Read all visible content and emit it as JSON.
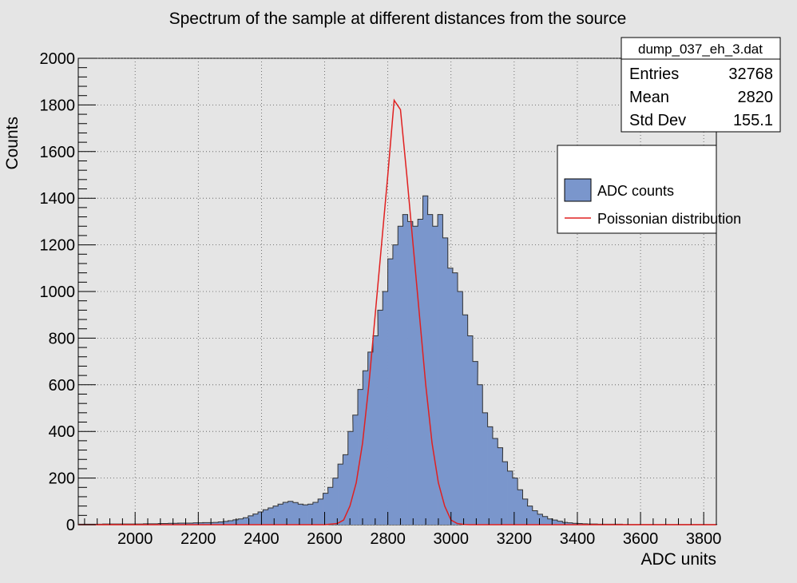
{
  "chart_data": {
    "type": "bar",
    "title": "Spectrum of the sample at different distances from the source",
    "xlabel": "ADC units",
    "ylabel": "Counts",
    "xlim": [
      1820,
      3840
    ],
    "ylim": [
      0,
      2000
    ],
    "grid": true,
    "x_ticks": [
      "2000",
      "2200",
      "2400",
      "2600",
      "2800",
      "3000",
      "3200",
      "3400",
      "3600",
      "3800"
    ],
    "y_ticks": [
      "0",
      "200",
      "400",
      "600",
      "800",
      "1000",
      "1200",
      "1400",
      "1600",
      "1800",
      "2000"
    ],
    "stats_box": {
      "title": "dump_037_eh_3.dat",
      "rows": [
        {
          "label": "Entries",
          "value": "32768"
        },
        {
          "label": "Mean",
          "value": "2820"
        },
        {
          "label": "Std Dev",
          "value": "155.1"
        }
      ]
    },
    "legend": {
      "placement": "upper-right",
      "entries": [
        "ADC counts",
        "Poissonian distribution"
      ]
    },
    "histogram": {
      "name": "ADC counts",
      "color": "#7a96cc",
      "bin_width": 15.8,
      "bins": [
        [
          1820,
          2
        ],
        [
          1836,
          2
        ],
        [
          1852,
          2
        ],
        [
          1868,
          2
        ],
        [
          1884,
          2
        ],
        [
          1899,
          3
        ],
        [
          1915,
          3
        ],
        [
          1931,
          3
        ],
        [
          1947,
          3
        ],
        [
          1963,
          3
        ],
        [
          1978,
          3
        ],
        [
          1994,
          3
        ],
        [
          2010,
          3
        ],
        [
          2026,
          4
        ],
        [
          2042,
          4
        ],
        [
          2057,
          4
        ],
        [
          2073,
          5
        ],
        [
          2089,
          5
        ],
        [
          2105,
          6
        ],
        [
          2121,
          6
        ],
        [
          2136,
          7
        ],
        [
          2152,
          7
        ],
        [
          2168,
          7
        ],
        [
          2184,
          8
        ],
        [
          2200,
          8
        ],
        [
          2215,
          9
        ],
        [
          2231,
          9
        ],
        [
          2247,
          10
        ],
        [
          2263,
          12
        ],
        [
          2279,
          14
        ],
        [
          2294,
          17
        ],
        [
          2310,
          21
        ],
        [
          2326,
          25
        ],
        [
          2342,
          30
        ],
        [
          2358,
          38
        ],
        [
          2373,
          46
        ],
        [
          2389,
          55
        ],
        [
          2405,
          64
        ],
        [
          2421,
          72
        ],
        [
          2437,
          80
        ],
        [
          2452,
          88
        ],
        [
          2468,
          96
        ],
        [
          2484,
          100
        ],
        [
          2500,
          95
        ],
        [
          2516,
          88
        ],
        [
          2531,
          85
        ],
        [
          2547,
          88
        ],
        [
          2563,
          96
        ],
        [
          2579,
          110
        ],
        [
          2595,
          135
        ],
        [
          2610,
          160
        ],
        [
          2626,
          200
        ],
        [
          2642,
          260
        ],
        [
          2658,
          300
        ],
        [
          2674,
          400
        ],
        [
          2689,
          470
        ],
        [
          2705,
          580
        ],
        [
          2721,
          660
        ],
        [
          2737,
          740
        ],
        [
          2753,
          810
        ],
        [
          2768,
          920
        ],
        [
          2784,
          1000
        ],
        [
          2800,
          1140
        ],
        [
          2816,
          1200
        ],
        [
          2832,
          1280
        ],
        [
          2847,
          1330
        ],
        [
          2863,
          1300
        ],
        [
          2879,
          1280
        ],
        [
          2895,
          1310
        ],
        [
          2911,
          1410
        ],
        [
          2926,
          1330
        ],
        [
          2942,
          1280
        ],
        [
          2958,
          1330
        ],
        [
          2974,
          1230
        ],
        [
          2990,
          1100
        ],
        [
          3005,
          1080
        ],
        [
          3021,
          1000
        ],
        [
          3037,
          900
        ],
        [
          3053,
          810
        ],
        [
          3069,
          700
        ],
        [
          3084,
          600
        ],
        [
          3100,
          480
        ],
        [
          3116,
          420
        ],
        [
          3132,
          370
        ],
        [
          3148,
          330
        ],
        [
          3163,
          270
        ],
        [
          3179,
          230
        ],
        [
          3195,
          200
        ],
        [
          3211,
          150
        ],
        [
          3227,
          110
        ],
        [
          3242,
          80
        ],
        [
          3258,
          60
        ],
        [
          3274,
          45
        ],
        [
          3290,
          35
        ],
        [
          3306,
          25
        ],
        [
          3321,
          20
        ],
        [
          3337,
          15
        ],
        [
          3353,
          10
        ],
        [
          3369,
          8
        ],
        [
          3385,
          6
        ],
        [
          3400,
          5
        ],
        [
          3416,
          4
        ],
        [
          3432,
          3
        ],
        [
          3448,
          3
        ],
        [
          3464,
          2
        ],
        [
          3479,
          2
        ],
        [
          3495,
          2
        ],
        [
          3511,
          2
        ],
        [
          3527,
          2
        ],
        [
          3543,
          1
        ],
        [
          3558,
          1
        ],
        [
          3574,
          1
        ],
        [
          3590,
          1
        ],
        [
          3606,
          1
        ],
        [
          3622,
          1
        ],
        [
          3637,
          1
        ],
        [
          3653,
          1
        ],
        [
          3669,
          1
        ],
        [
          3685,
          1
        ],
        [
          3701,
          1
        ],
        [
          3716,
          1
        ],
        [
          3732,
          1
        ],
        [
          3748,
          1
        ],
        [
          3764,
          1
        ],
        [
          3780,
          1
        ],
        [
          3795,
          1
        ],
        [
          3811,
          1
        ],
        [
          3827,
          1
        ]
      ]
    },
    "curve": {
      "name": "Poissonian distribution",
      "color": "#e02020",
      "x": [
        1820,
        2600,
        2640,
        2660,
        2680,
        2700,
        2720,
        2740,
        2760,
        2780,
        2800,
        2820,
        2840,
        2860,
        2880,
        2900,
        2920,
        2940,
        2960,
        2980,
        3000,
        3020,
        3040,
        3060,
        3840
      ],
      "y": [
        0,
        0,
        5,
        20,
        80,
        180,
        350,
        600,
        900,
        1200,
        1500,
        1820,
        1780,
        1500,
        1200,
        900,
        600,
        350,
        180,
        80,
        20,
        5,
        1,
        0,
        0
      ]
    }
  }
}
